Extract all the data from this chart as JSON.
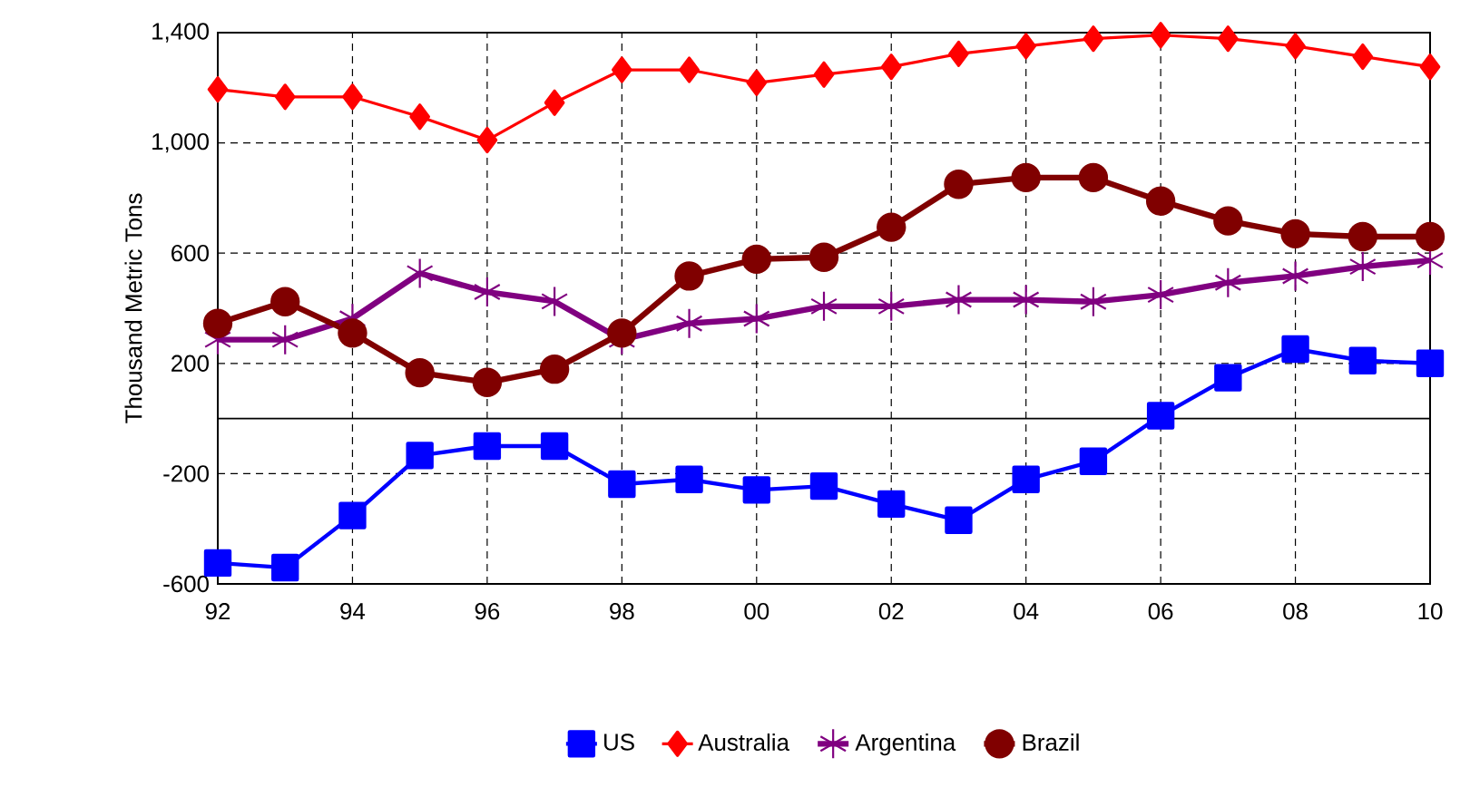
{
  "chart_data": {
    "type": "line",
    "ylabel": "Thousand Metric Tons",
    "x": [
      1992,
      1993,
      1994,
      1995,
      1996,
      1997,
      1998,
      1999,
      2000,
      2001,
      2002,
      2003,
      2004,
      2005,
      2006,
      2007,
      2008,
      2009,
      2010
    ],
    "xlim": [
      1992,
      2010
    ],
    "xticks": [
      {
        "value": 1992,
        "label": "92"
      },
      {
        "value": 1994,
        "label": "94"
      },
      {
        "value": 1996,
        "label": "96"
      },
      {
        "value": 1998,
        "label": "98"
      },
      {
        "value": 2000,
        "label": "00"
      },
      {
        "value": 2002,
        "label": "02"
      },
      {
        "value": 2004,
        "label": "04"
      },
      {
        "value": 2006,
        "label": "06"
      },
      {
        "value": 2008,
        "label": "08"
      },
      {
        "value": 2010,
        "label": "10"
      }
    ],
    "ylim": [
      -600,
      1400
    ],
    "yticks": [
      -600,
      -200,
      200,
      600,
      {
        "value": 1000,
        "label": "1,000"
      },
      {
        "value": 1400,
        "label": "1,400"
      }
    ],
    "grid": true,
    "legend": "bottom",
    "line_style": "solid",
    "ref_lines": [
      {
        "axis": "y",
        "value": 0,
        "color": "#000000",
        "line_style": "solid"
      }
    ],
    "series": [
      {
        "name": "US",
        "color": "#0000ff",
        "marker": "square",
        "values": [
          -524,
          -541,
          -352,
          -134,
          -100,
          -100,
          -238,
          -221,
          -259,
          -245,
          -310,
          -369,
          -221,
          -155,
          10,
          148,
          252,
          210,
          200
        ]
      },
      {
        "name": "Australia",
        "color": "#ff0000",
        "marker": "diamond",
        "values": [
          1194,
          1167,
          1167,
          1095,
          1010,
          1146,
          1265,
          1265,
          1218,
          1248,
          1276,
          1323,
          1351,
          1378,
          1391,
          1378,
          1351,
          1313,
          1276
        ]
      },
      {
        "name": "Argentina",
        "color": "#800080",
        "marker": "cross",
        "values": [
          286,
          286,
          363,
          527,
          459,
          425,
          286,
          345,
          362,
          407,
          407,
          431,
          431,
          424,
          449,
          493,
          517,
          551,
          574
        ]
      },
      {
        "name": "Brazil",
        "color": "#800000",
        "marker": "circle",
        "values": [
          345,
          424,
          310,
          166,
          131,
          179,
          310,
          517,
          578,
          585,
          694,
          850,
          874,
          874,
          789,
          717,
          670,
          660,
          660
        ]
      }
    ]
  }
}
